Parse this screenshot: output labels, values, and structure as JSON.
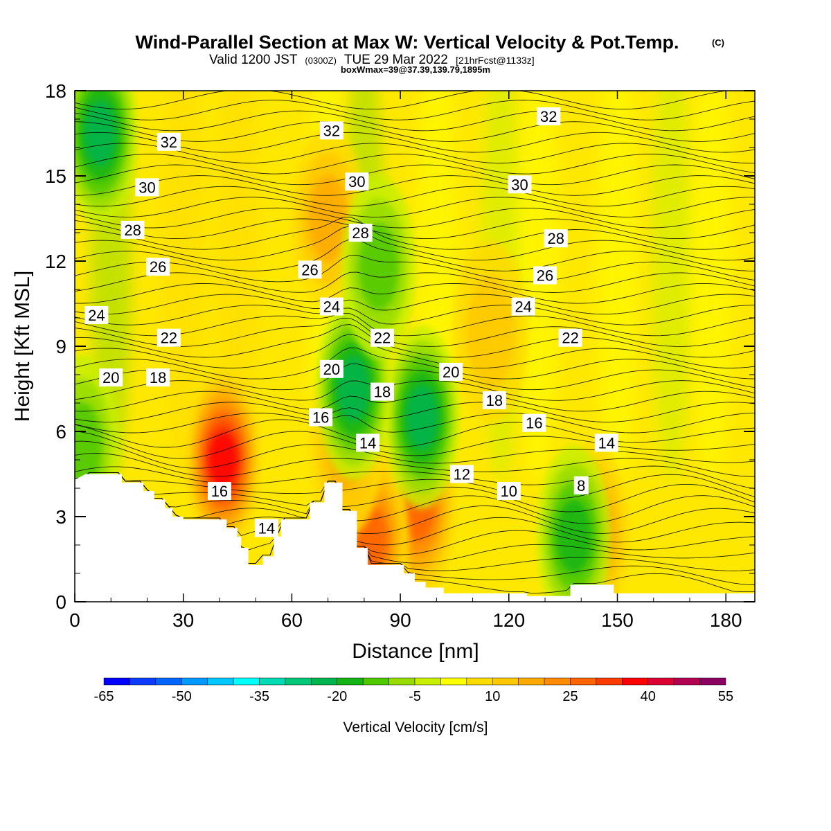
{
  "titles": {
    "main": "Wind-Parallel Section at Max W: Vertical Velocity & Pot.Temp.",
    "copyright": "(C)",
    "valid_prefix": "Valid 1200 JST",
    "valid_utc": "(0300Z)",
    "valid_date": "TUE 29 Mar 2022",
    "forecast": "[21hrFcst@1133z]",
    "boxmax": "boxWmax=39@37.39,139.79,1895m"
  },
  "chart_data": {
    "type": "heatmap",
    "xlabel": "Distance [nm]",
    "ylabel": "Height [Kft MSL]",
    "xlim": [
      0,
      188
    ],
    "ylim": [
      0,
      18
    ],
    "xticks": [
      0,
      30,
      60,
      90,
      120,
      150,
      180
    ],
    "yticks": [
      0,
      3,
      6,
      9,
      12,
      15,
      18
    ],
    "colorbar": {
      "label": "Vertical Velocity [cm/s]",
      "tick_labels": [
        "-65",
        "-50",
        "-35",
        "-20",
        "-5",
        "10",
        "25",
        "40",
        "55"
      ],
      "tick_values": [
        -65,
        -50,
        -35,
        -20,
        -5,
        10,
        25,
        40,
        55
      ],
      "levels": [
        -65,
        -60,
        -55,
        -50,
        -45,
        -40,
        -35,
        -30,
        -25,
        -20,
        -15,
        -10,
        -5,
        0,
        5,
        10,
        15,
        20,
        25,
        30,
        35,
        40,
        45,
        50,
        55
      ],
      "colors": [
        "#0000ff",
        "#0a3cff",
        "#0066ff",
        "#0099ff",
        "#00c8ff",
        "#00ffff",
        "#00dcb4",
        "#00c878",
        "#00b450",
        "#14b414",
        "#50c800",
        "#96dc00",
        "#c8f000",
        "#ffff00",
        "#ffdc00",
        "#ffc800",
        "#ffaa00",
        "#ff8c00",
        "#ff6400",
        "#ff3c00",
        "#ff0000",
        "#dc0032",
        "#b40050",
        "#8c0064",
        "#640096"
      ]
    },
    "terrain": [
      [
        0,
        4.3
      ],
      [
        3,
        4.5
      ],
      [
        13,
        4.5
      ],
      [
        13,
        4.2
      ],
      [
        19,
        4.2
      ],
      [
        19,
        3.9
      ],
      [
        22,
        3.9
      ],
      [
        22,
        3.6
      ],
      [
        25,
        3.6
      ],
      [
        25,
        3.3
      ],
      [
        27,
        3.3
      ],
      [
        27,
        3.0
      ],
      [
        30,
        3.0
      ],
      [
        30,
        2.9
      ],
      [
        42,
        2.9
      ],
      [
        42,
        2.6
      ],
      [
        45,
        2.6
      ],
      [
        45,
        2.3
      ],
      [
        46,
        2.3
      ],
      [
        46,
        1.9
      ],
      [
        48,
        1.9
      ],
      [
        48,
        1.3
      ],
      [
        52,
        1.3
      ],
      [
        52,
        1.6
      ],
      [
        53,
        1.6
      ],
      [
        53,
        1.6
      ],
      [
        55,
        1.6
      ],
      [
        55,
        2.3
      ],
      [
        57,
        2.3
      ],
      [
        57,
        2.9
      ],
      [
        65,
        2.9
      ],
      [
        65,
        3.5
      ],
      [
        69,
        3.5
      ],
      [
        69,
        4.2
      ],
      [
        74,
        4.2
      ],
      [
        74,
        3.2
      ],
      [
        78,
        3.2
      ],
      [
        78,
        1.9
      ],
      [
        81,
        1.9
      ],
      [
        81,
        1.3
      ],
      [
        91,
        1.3
      ],
      [
        91,
        1.0
      ],
      [
        94,
        1.0
      ],
      [
        94,
        0.7
      ],
      [
        97,
        0.7
      ],
      [
        97,
        0.5
      ],
      [
        102,
        0.5
      ],
      [
        102,
        0.3
      ],
      [
        125,
        0.3
      ],
      [
        125,
        0.2
      ],
      [
        137,
        0.2
      ],
      [
        137,
        0.6
      ],
      [
        149,
        0.6
      ],
      [
        149,
        0.3
      ],
      [
        188,
        0.3
      ]
    ],
    "updraft_cores": [
      {
        "x": 41,
        "y": 5.0,
        "w": 32
      },
      {
        "x": 95,
        "y": 3.3,
        "w": 22
      },
      {
        "x": 82,
        "y": 2.2,
        "w": 18
      },
      {
        "x": 143,
        "y": 2.4,
        "w": 14
      },
      {
        "x": 75,
        "y": 5.5,
        "w": 12
      },
      {
        "x": 70,
        "y": 13.5,
        "w": 8
      },
      {
        "x": 115,
        "y": 9.5,
        "w": 5
      }
    ],
    "downdraft_cores": [
      {
        "x": 7,
        "y": 16.5,
        "w": -20
      },
      {
        "x": 96,
        "y": 6.5,
        "w": -22
      },
      {
        "x": 77,
        "y": 7.5,
        "w": -18
      },
      {
        "x": 138,
        "y": 2.3,
        "w": -15
      },
      {
        "x": 84,
        "y": 11.8,
        "w": -10
      },
      {
        "x": 2,
        "y": 5.5,
        "w": -12
      }
    ],
    "theta_contour_labels": [
      {
        "text": "32",
        "x": 26,
        "y": 16.2
      },
      {
        "text": "32",
        "x": 71,
        "y": 16.6
      },
      {
        "text": "32",
        "x": 131,
        "y": 17.1
      },
      {
        "text": "30",
        "x": 20,
        "y": 14.6
      },
      {
        "text": "30",
        "x": 78,
        "y": 14.8
      },
      {
        "text": "30",
        "x": 123,
        "y": 14.7
      },
      {
        "text": "28",
        "x": 16,
        "y": 13.1
      },
      {
        "text": "28",
        "x": 79,
        "y": 13.0
      },
      {
        "text": "28",
        "x": 133,
        "y": 12.8
      },
      {
        "text": "26",
        "x": 23,
        "y": 11.8
      },
      {
        "text": "26",
        "x": 65,
        "y": 11.7
      },
      {
        "text": "26",
        "x": 130,
        "y": 11.5
      },
      {
        "text": "24",
        "x": 6,
        "y": 10.1
      },
      {
        "text": "24",
        "x": 71,
        "y": 10.4
      },
      {
        "text": "24",
        "x": 124,
        "y": 10.4
      },
      {
        "text": "22",
        "x": 26,
        "y": 9.3
      },
      {
        "text": "22",
        "x": 85,
        "y": 9.3
      },
      {
        "text": "22",
        "x": 137,
        "y": 9.3
      },
      {
        "text": "20",
        "x": 10,
        "y": 7.9
      },
      {
        "text": "20",
        "x": 71,
        "y": 8.2
      },
      {
        "text": "20",
        "x": 104,
        "y": 8.1
      },
      {
        "text": "18",
        "x": 23,
        "y": 7.9
      },
      {
        "text": "18",
        "x": 85,
        "y": 7.4
      },
      {
        "text": "18",
        "x": 116,
        "y": 7.1
      },
      {
        "text": "16",
        "x": 68,
        "y": 6.5
      },
      {
        "text": "16",
        "x": 127,
        "y": 6.3
      },
      {
        "text": "16",
        "x": 40,
        "y": 3.9
      },
      {
        "text": "14",
        "x": 81,
        "y": 5.6
      },
      {
        "text": "14",
        "x": 147,
        "y": 5.6
      },
      {
        "text": "14",
        "x": 53,
        "y": 2.6
      },
      {
        "text": "12",
        "x": 107,
        "y": 4.5
      },
      {
        "text": "10",
        "x": 120,
        "y": 3.9
      },
      {
        "text": "8",
        "x": 140,
        "y": 4.1
      }
    ]
  }
}
